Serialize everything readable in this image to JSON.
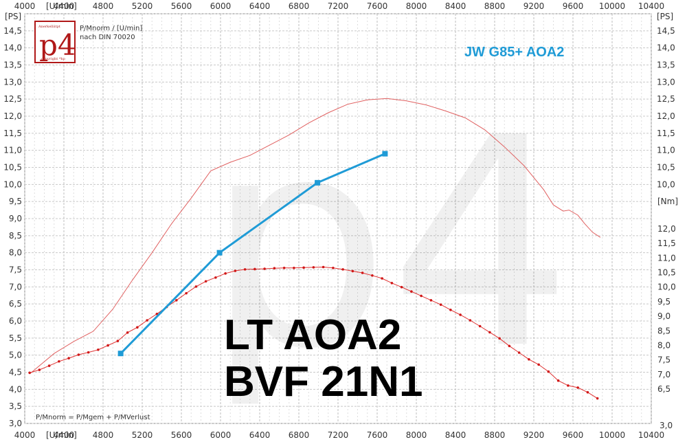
{
  "chart_data": {
    "type": "line",
    "title": "",
    "x_unit_label": "[U/min]",
    "x_range": [
      4000,
      10400
    ],
    "x_ticks": [
      4000,
      4400,
      4800,
      5200,
      5600,
      6000,
      6400,
      6800,
      7200,
      7600,
      8000,
      8400,
      8800,
      9200,
      9600,
      10000,
      10400
    ],
    "y_left_unit_label": "[PS]",
    "y_right_unit_label": "[PS]",
    "y_range": [
      3.0,
      15.0
    ],
    "y_ticks": [
      "3,0",
      "3,5",
      "4,0",
      "4,5",
      "5,0",
      "5,5",
      "6,0",
      "6,5",
      "7,0",
      "7,5",
      "8,0",
      "8,5",
      "9,0",
      "9,5",
      "10,0",
      "10,5",
      "11,0",
      "11,5",
      "12,0",
      "12,5",
      "13,0",
      "13,5",
      "14,0",
      "14,5",
      "[PS]"
    ],
    "y_ticks_right": [
      "14,5",
      "14,0",
      "13,5",
      "13,0",
      "12,5",
      "12,0",
      "11,5",
      "11,0",
      "10,5",
      "10,0"
    ],
    "torque_unit_label": "[Nm]",
    "torque_range": [
      5.8,
      12.8
    ],
    "torque_ticks": [
      "12,0",
      "11,5",
      "11,0",
      "10,5",
      "10,0",
      "9,5",
      "9,0",
      "8,5",
      "8,0",
      "7,5",
      "7,0",
      "6,5"
    ],
    "right_bottom_tick": "3,0",
    "series": [
      {
        "name": "JW G85+ AOA2",
        "color": "#1f9bd6",
        "x": [
          4980,
          5990,
          6990,
          7680
        ],
        "y": [
          5.05,
          8.0,
          10.05,
          10.9
        ]
      },
      {
        "name": "LT AOA2 BVF 21N1 power",
        "color": "#e06060",
        "x": [
          4050,
          4300,
          4500,
          4700,
          4900,
          5100,
          5300,
          5500,
          5700,
          5900,
          6100,
          6300,
          6500,
          6700,
          6900,
          7100,
          7300,
          7500,
          7700,
          7900,
          8100,
          8300,
          8500,
          8700,
          8900,
          9100,
          9300,
          9400,
          9500,
          9560,
          9650,
          9720,
          9800,
          9880
        ],
        "y": [
          4.45,
          5.05,
          5.4,
          5.7,
          6.35,
          7.2,
          8.0,
          8.85,
          9.6,
          10.4,
          10.65,
          10.85,
          11.15,
          11.45,
          11.8,
          12.1,
          12.35,
          12.48,
          12.52,
          12.45,
          12.33,
          12.15,
          11.95,
          11.6,
          11.1,
          10.55,
          9.85,
          9.4,
          9.22,
          9.25,
          9.1,
          8.85,
          8.6,
          8.45
        ]
      },
      {
        "name": "LT AOA2 BVF 21N1 torque",
        "color": "#e03030",
        "x": [
          4050,
          4150,
          4250,
          4350,
          4450,
          4550,
          4650,
          4750,
          4850,
          4950,
          5050,
          5150,
          5250,
          5350,
          5450,
          5550,
          5650,
          5750,
          5850,
          5950,
          6050,
          6150,
          6250,
          6350,
          6450,
          6550,
          6650,
          6750,
          6850,
          6950,
          7050,
          7150,
          7250,
          7350,
          7450,
          7550,
          7650,
          7750,
          7850,
          7950,
          8050,
          8150,
          8250,
          8350,
          8450,
          8550,
          8650,
          8750,
          8850,
          8950,
          9050,
          9150,
          9250,
          9350,
          9450,
          9550,
          9650,
          9750,
          9850
        ],
        "y": [
          7.06,
          7.16,
          7.3,
          7.45,
          7.56,
          7.68,
          7.76,
          7.85,
          8.0,
          8.15,
          8.44,
          8.62,
          8.86,
          9.08,
          9.32,
          9.55,
          9.79,
          10.02,
          10.2,
          10.33,
          10.47,
          10.56,
          10.61,
          10.62,
          10.63,
          10.65,
          10.66,
          10.66,
          10.67,
          10.68,
          10.69,
          10.66,
          10.61,
          10.55,
          10.49,
          10.4,
          10.3,
          10.14,
          10.0,
          9.85,
          9.7,
          9.55,
          9.4,
          9.22,
          9.05,
          8.86,
          8.66,
          8.45,
          8.24,
          7.98,
          7.75,
          7.52,
          7.34,
          7.1,
          6.79,
          6.62,
          6.55,
          6.39,
          6.18
        ]
      }
    ],
    "annotations": {
      "logo": "p4",
      "logo_small_top": "Anerkelliitpt",
      "logo_small_bottom": "copyright *hp",
      "norm_line1": "P/Mnorm / [U/min]",
      "norm_line2": "nach DIN 70020",
      "formula": "P/Mnorm = P/Mgem + P/MVerlust",
      "watermark": "p4",
      "big_line1": "LT AOA2",
      "big_line2": "BVF 21N1",
      "series_label": "JW G85+ AOA2"
    },
    "grid": true
  }
}
